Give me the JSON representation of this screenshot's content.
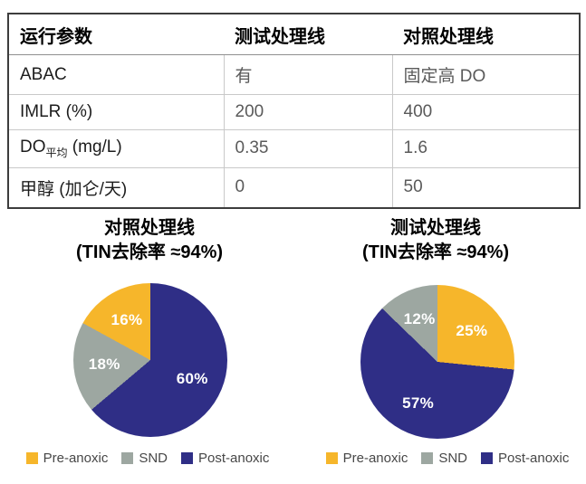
{
  "table": {
    "headers": [
      "运行参数",
      "测试处理线",
      "对照处理线"
    ],
    "rows": [
      {
        "cells": [
          "ABAC",
          "有",
          "固定高 DO"
        ]
      },
      {
        "cells": [
          "IMLR (%)",
          "200",
          "400"
        ]
      },
      {
        "cells": [
          "DO",
          "0.35",
          "1.6"
        ],
        "sub": "平均",
        "suffix": " (mg/L)"
      },
      {
        "cells": [
          "甲醇 (加仑/天)",
          "0",
          "50"
        ]
      }
    ]
  },
  "chart_data": [
    {
      "type": "pie",
      "title": "对照处理线",
      "subtitle": "(TIN去除率 ≈94%)",
      "slices": [
        {
          "label": "Post-anoxic",
          "value": 60,
          "color": "#2F2E86"
        },
        {
          "label": "SND",
          "value": 18,
          "color": "#9DA7A1"
        },
        {
          "label": "Pre-anoxic",
          "value": 16,
          "color": "#F6B62B"
        }
      ],
      "start_angle_deg": 0,
      "clockwise": true,
      "value_suffix": "%",
      "label_color": "#FFFFFF",
      "legend_position": "bottom"
    },
    {
      "type": "pie",
      "title": "测试处理线",
      "subtitle": "(TIN去除率 ≈94%)",
      "slices": [
        {
          "label": "Pre-anoxic",
          "value": 25,
          "color": "#F6B62B"
        },
        {
          "label": "Post-anoxic",
          "value": 57,
          "color": "#2F2E86"
        },
        {
          "label": "SND",
          "value": 12,
          "color": "#9DA7A1"
        }
      ],
      "start_angle_deg": 0,
      "clockwise": true,
      "value_suffix": "%",
      "label_color": "#FFFFFF",
      "legend_position": "bottom"
    },
    {
      "type": "table",
      "columns": [
        "运行参数",
        "测试处理线",
        "对照处理线"
      ],
      "rows": [
        [
          "ABAC",
          "有",
          "固定高 DO"
        ],
        [
          "IMLR (%)",
          "200",
          "400"
        ],
        [
          "DO 平均 (mg/L)",
          "0.35",
          "1.6"
        ],
        [
          "甲醇 (加仑/天)",
          "0",
          "50"
        ]
      ]
    }
  ],
  "legend": {
    "items": [
      {
        "label": "Pre-anoxic",
        "color": "#F6B62B"
      },
      {
        "label": "SND",
        "color": "#9DA7A1"
      },
      {
        "label": "Post-anoxic",
        "color": "#2F2E86"
      }
    ]
  },
  "colors": {
    "pre_anoxic": "#F6B62B",
    "snd": "#9DA7A1",
    "post_anoxic": "#2F2E86",
    "table_border": "#3d3d3d",
    "grid_line": "#c9c9c9"
  }
}
